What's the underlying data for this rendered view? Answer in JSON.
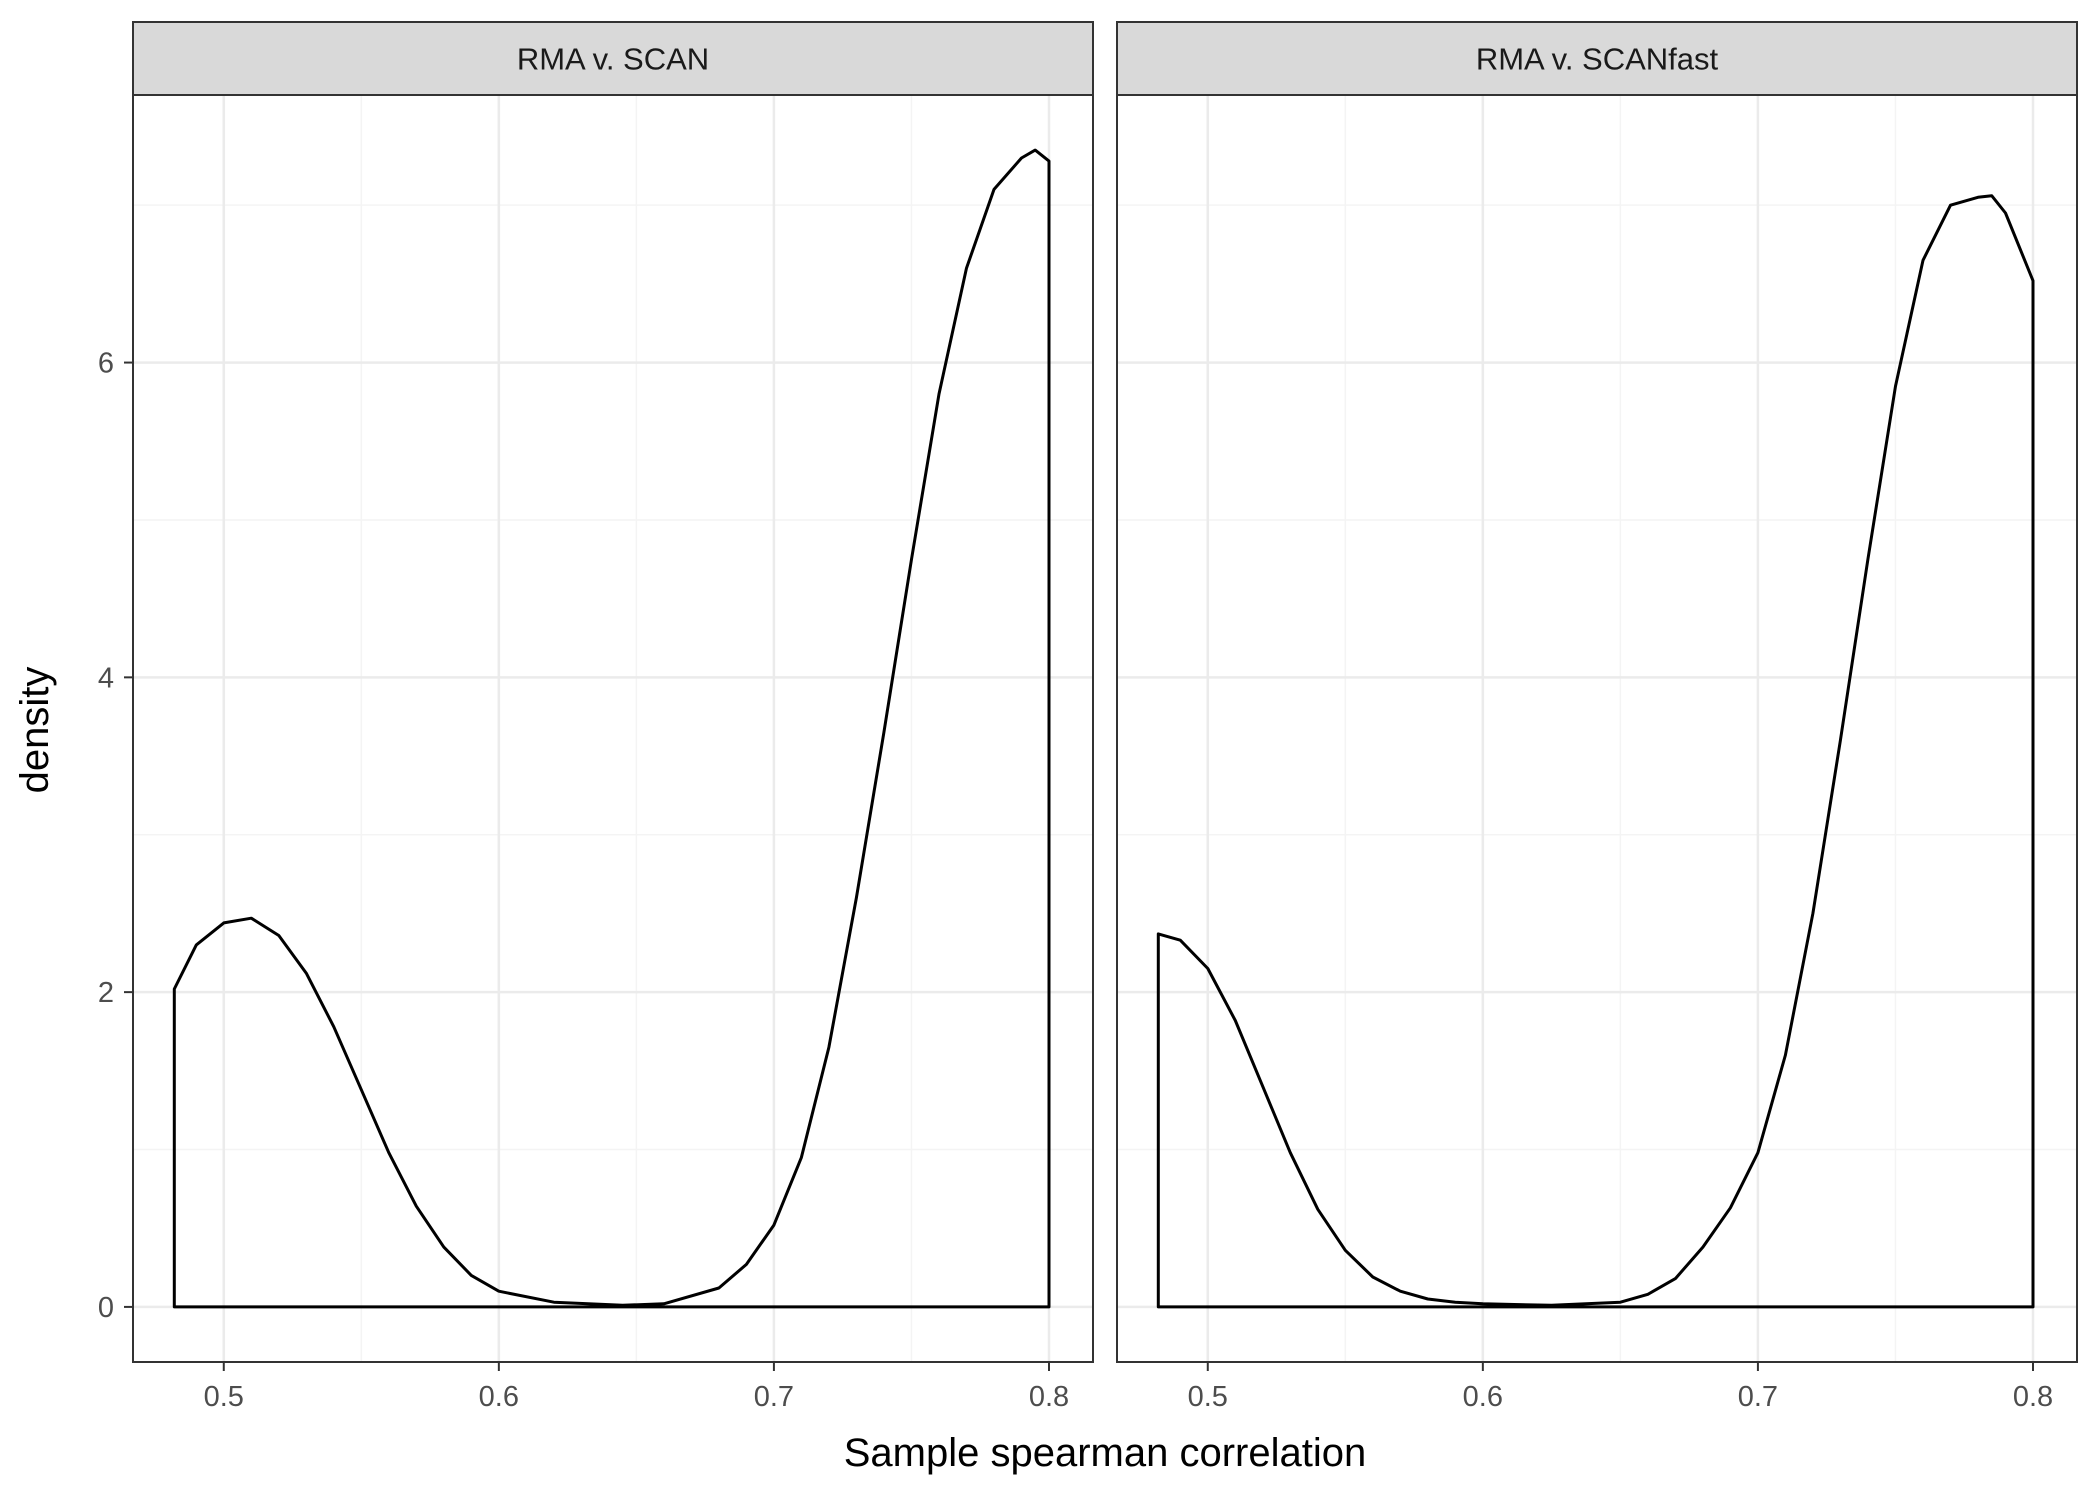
{
  "chart_data": {
    "type": "area",
    "xlabel": "Sample spearman correlation",
    "ylabel": "density",
    "xlim": [
      0.467,
      0.816
    ],
    "ylim": [
      -0.35,
      7.7
    ],
    "x_ticks": [
      0.5,
      0.6,
      0.7,
      0.8
    ],
    "x_tick_labels": [
      "0.5",
      "0.6",
      "0.7",
      "0.8"
    ],
    "y_ticks": [
      0,
      2,
      4,
      6
    ],
    "y_tick_labels": [
      "0",
      "2",
      "4",
      "6"
    ],
    "grid": true,
    "colors": {
      "line": "#000000",
      "grid_major": "#ebebeb",
      "grid_minor": "#f4f4f4",
      "strip_fill": "#d9d9d9",
      "panel_border": "#333333"
    },
    "panels": [
      {
        "title": "RMA v. SCAN",
        "x": [
          0.482,
          0.49,
          0.5,
          0.51,
          0.52,
          0.53,
          0.54,
          0.55,
          0.56,
          0.57,
          0.58,
          0.59,
          0.6,
          0.62,
          0.645,
          0.66,
          0.68,
          0.69,
          0.7,
          0.71,
          0.72,
          0.73,
          0.74,
          0.75,
          0.76,
          0.77,
          0.78,
          0.79,
          0.795,
          0.8
        ],
        "y": [
          2.02,
          2.3,
          2.44,
          2.47,
          2.36,
          2.12,
          1.78,
          1.38,
          0.98,
          0.64,
          0.38,
          0.2,
          0.1,
          0.03,
          0.01,
          0.02,
          0.12,
          0.27,
          0.52,
          0.95,
          1.65,
          2.6,
          3.65,
          4.75,
          5.8,
          6.6,
          7.1,
          7.3,
          7.35,
          7.28
        ]
      },
      {
        "title": "RMA v. SCANfast",
        "x": [
          0.482,
          0.49,
          0.5,
          0.51,
          0.52,
          0.53,
          0.54,
          0.55,
          0.56,
          0.57,
          0.58,
          0.59,
          0.6,
          0.625,
          0.65,
          0.66,
          0.67,
          0.68,
          0.69,
          0.7,
          0.71,
          0.72,
          0.73,
          0.74,
          0.75,
          0.76,
          0.77,
          0.78,
          0.785,
          0.79,
          0.8
        ],
        "y": [
          2.37,
          2.33,
          2.15,
          1.82,
          1.4,
          0.98,
          0.62,
          0.36,
          0.19,
          0.1,
          0.05,
          0.03,
          0.02,
          0.01,
          0.03,
          0.08,
          0.18,
          0.38,
          0.63,
          0.98,
          1.6,
          2.5,
          3.6,
          4.75,
          5.85,
          6.65,
          7.0,
          7.05,
          7.06,
          6.95,
          6.52
        ]
      }
    ]
  }
}
